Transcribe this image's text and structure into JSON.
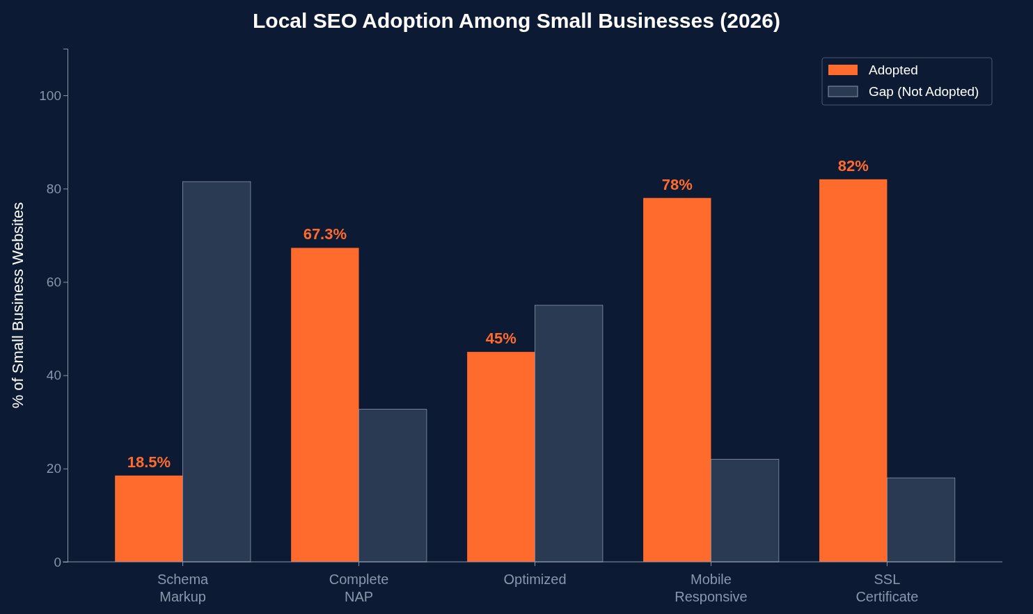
{
  "chart_data": {
    "type": "bar",
    "title": "Local SEO Adoption Among Small Businesses (2026)",
    "ylabel": "% of Small Business Websites",
    "categories": [
      "Schema Markup",
      "Complete NAP",
      "Optimized",
      "Mobile Responsive",
      "SSL Certificate"
    ],
    "series": [
      {
        "name": "Adopted",
        "color": "#ff6b2c",
        "values": [
          18.5,
          67.3,
          45,
          78,
          82
        ],
        "value_labels": [
          "18.5%",
          "67.3%",
          "45%",
          "78%",
          "82%"
        ]
      },
      {
        "name": "Gap (Not Adopted)",
        "color": "#2a3a52",
        "values": [
          81.5,
          32.7,
          55,
          22,
          18
        ]
      }
    ],
    "ylim": [
      0,
      110
    ],
    "yticks": [
      0,
      20,
      40,
      60,
      80,
      100
    ],
    "grid": false,
    "legend": "top right"
  }
}
